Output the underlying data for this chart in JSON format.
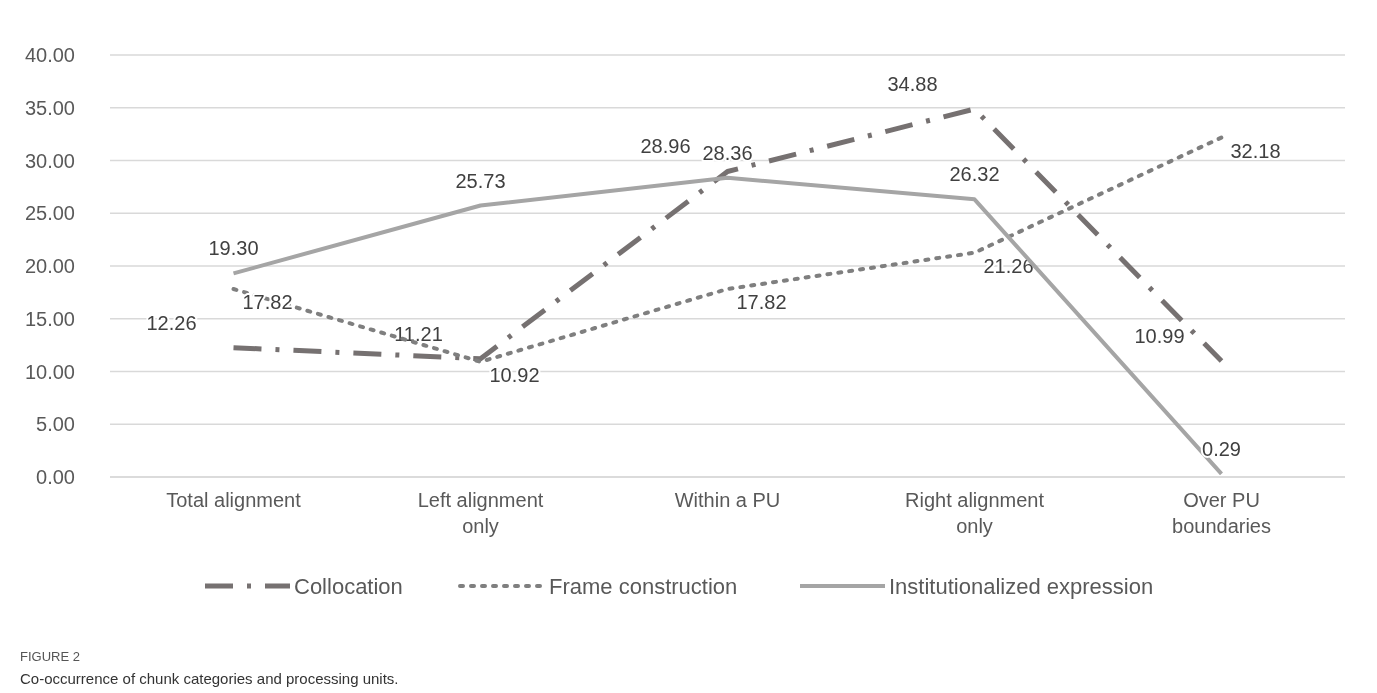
{
  "chart_data": {
    "type": "line",
    "categories": [
      "Total alignment",
      "Left alignment only",
      "Within a PU",
      "Right alignment only",
      "Over PU boundaries"
    ],
    "series": [
      {
        "name": "Collocation",
        "color": "#767171",
        "line_style": "dashed",
        "values": [
          12.26,
          11.21,
          28.96,
          34.88,
          10.99
        ],
        "value_labels": [
          "12.26",
          "11.21",
          "28.96",
          "34.88",
          "10.99"
        ]
      },
      {
        "name": "Frame construction",
        "color": "#7f7f7f",
        "line_style": "dotted",
        "values": [
          17.82,
          10.92,
          17.82,
          21.26,
          32.18
        ],
        "value_labels": [
          "17.82",
          "10.92",
          "17.82",
          "21.26",
          "32.18"
        ]
      },
      {
        "name": "Institutionalized expression",
        "color": "#a5a5a5",
        "line_style": "solid",
        "values": [
          19.3,
          25.73,
          28.36,
          26.32,
          0.29
        ],
        "value_labels": [
          "19.30",
          "25.73",
          "28.36",
          "26.32",
          "0.29"
        ]
      }
    ],
    "ylim": [
      0,
      40
    ],
    "yticks": [
      {
        "value": 0,
        "label": "0.00"
      },
      {
        "value": 5,
        "label": "5.00"
      },
      {
        "value": 10,
        "label": "10.00"
      },
      {
        "value": 15,
        "label": "15.00"
      },
      {
        "value": 20,
        "label": "20.00"
      },
      {
        "value": 25,
        "label": "25.00"
      },
      {
        "value": 30,
        "label": "30.00"
      },
      {
        "value": 35,
        "label": "35.00"
      },
      {
        "value": 40,
        "label": "40.00"
      }
    ],
    "grid": "y",
    "legend": "bottom",
    "marker": "none",
    "annotations": [
      "FIGURE 2",
      "Co-occurrence of chunk categories and processing units."
    ]
  }
}
